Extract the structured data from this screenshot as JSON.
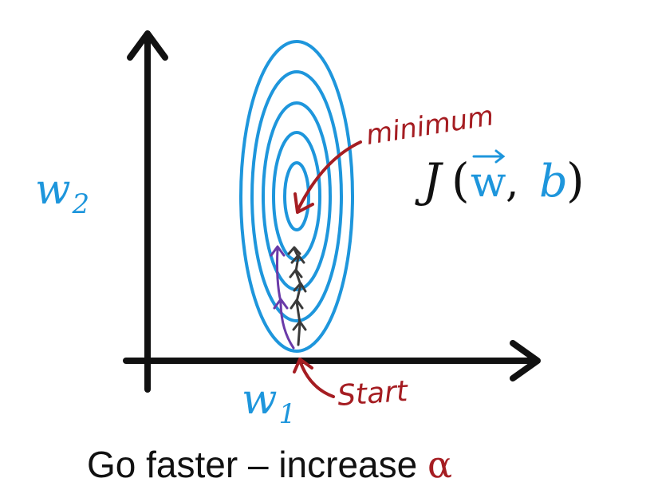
{
  "labels": {
    "w2_base": "w",
    "w2_sub": "2",
    "w1_base": "w",
    "w1_sub": "1",
    "minimum": "minimum",
    "start": "Start",
    "cost_fn_J": "J",
    "cost_fn_open": "(",
    "cost_fn_w": "w",
    "cost_fn_comma": ",",
    "cost_fn_b": "b",
    "cost_fn_close": ")",
    "caption_prefix": "Go faster – increase ",
    "caption_alpha": "α"
  },
  "colors": {
    "axis": "#111111",
    "contour": "#1e96dc",
    "annotation": "#a51d22",
    "black_steps": "#3a3a3a",
    "purple_steps": "#6a3aa8",
    "caption_text": "#111111"
  },
  "icons": {
    "vector_arrow": "right-arrow-over-w"
  },
  "contour_count": 5,
  "black_step_count": 6,
  "purple_step_count": 3
}
